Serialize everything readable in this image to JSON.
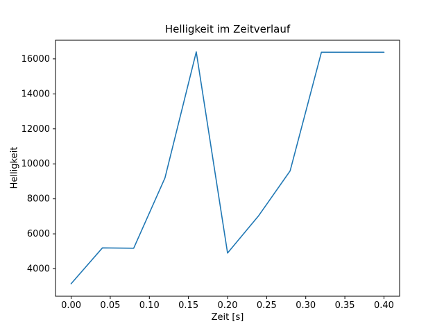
{
  "figure": {
    "background": "#ffffff"
  },
  "chart_data": {
    "type": "line",
    "title": "Helligkeit im Zeitverlauf",
    "xlabel": "Zeit [s]",
    "ylabel": "Helligkeit",
    "x": [
      0.0,
      0.04,
      0.08,
      0.12,
      0.16,
      0.2,
      0.24,
      0.28,
      0.32,
      0.36,
      0.4
    ],
    "values": [
      3150,
      5200,
      5180,
      9200,
      16400,
      4900,
      7050,
      9600,
      16380,
      16380,
      16380
    ],
    "series_name": "Helligkeit",
    "line_color": "#1f77b4",
    "line_width": 1.6,
    "grid": false,
    "legend": "none",
    "xlim": [
      -0.02,
      0.42
    ],
    "ylim": [
      2435,
      17065
    ],
    "xticks": [
      0.0,
      0.05,
      0.1,
      0.15,
      0.2,
      0.25,
      0.3,
      0.35,
      0.4
    ],
    "xtick_labels": [
      "0.00",
      "0.05",
      "0.10",
      "0.15",
      "0.20",
      "0.25",
      "0.30",
      "0.35",
      "0.40"
    ],
    "yticks": [
      4000,
      6000,
      8000,
      10000,
      12000,
      14000,
      16000
    ],
    "ytick_labels": [
      "4000",
      "6000",
      "8000",
      "10000",
      "12000",
      "14000",
      "16000"
    ],
    "axis_color": "#000000"
  }
}
